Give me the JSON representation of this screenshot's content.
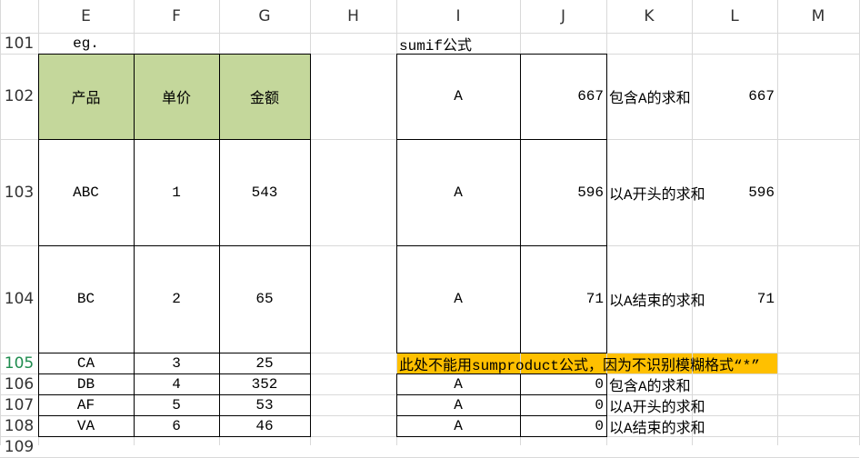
{
  "columns": [
    "E",
    "F",
    "G",
    "H",
    "I",
    "J",
    "K",
    "L",
    "M"
  ],
  "rows": [
    {
      "number": 101,
      "cells": [
        "eg.",
        null,
        null,
        null,
        "sumif公式",
        null,
        null,
        null,
        null
      ]
    },
    {
      "number": 102,
      "cells": [
        "产品",
        "单价",
        "金额",
        null,
        "A",
        667,
        "包含A的求和",
        667,
        null
      ]
    },
    {
      "number": 103,
      "cells": [
        "ABC",
        1,
        543,
        null,
        "A",
        596,
        "以A开头的求和",
        596,
        null
      ]
    },
    {
      "number": 104,
      "cells": [
        "BC",
        2,
        65,
        null,
        "A",
        71,
        "以A结束的求和",
        71,
        null
      ]
    },
    {
      "number": 105,
      "cells": [
        "CA",
        3,
        25,
        null,
        "此处不能用sumproduct公式，因为不识别模糊格式“*”",
        null,
        null,
        null,
        null
      ]
    },
    {
      "number": 106,
      "cells": [
        "DB",
        4,
        352,
        null,
        "A",
        0,
        "包含A的求和",
        null,
        null
      ]
    },
    {
      "number": 107,
      "cells": [
        "AF",
        5,
        53,
        null,
        "A",
        0,
        "以A开头的求和",
        null,
        null
      ]
    },
    {
      "number": 108,
      "cells": [
        "VA",
        6,
        46,
        null,
        "A",
        0,
        "以A结束的求和",
        null,
        null
      ]
    },
    {
      "number": 109,
      "cells": [
        null,
        null,
        null,
        null,
        null,
        null,
        null,
        null,
        null
      ]
    }
  ]
}
